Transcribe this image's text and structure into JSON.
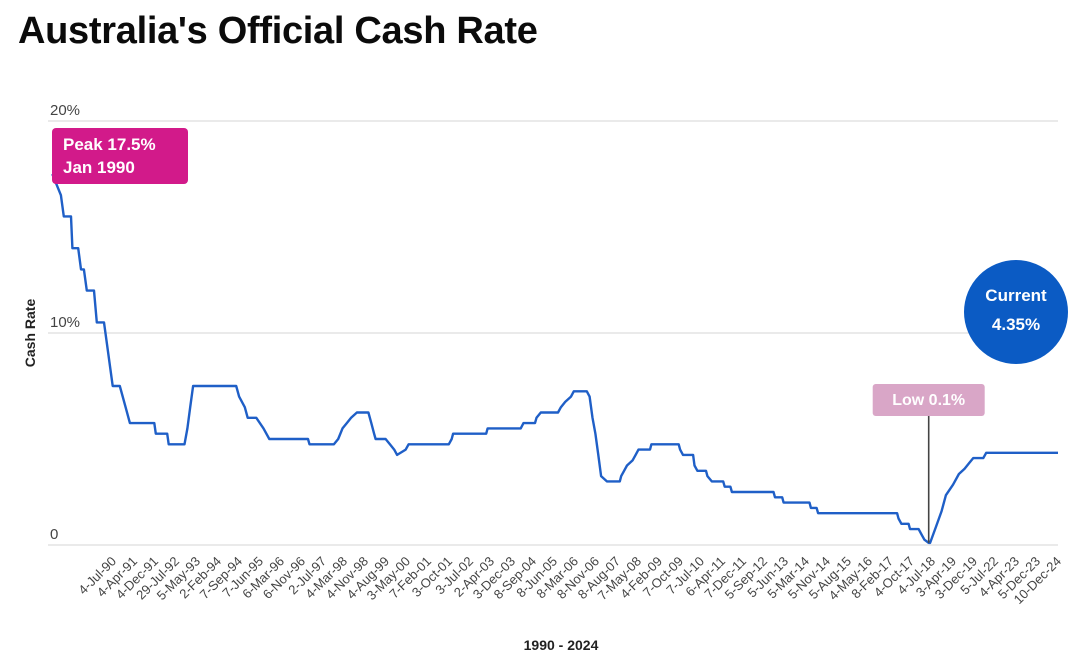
{
  "title": "Australia's Official Cash Rate",
  "chart_data": {
    "type": "line",
    "title": "Australia's Official Cash Rate",
    "xlabel": "1990 - 2024",
    "ylabel": "Cash Rate",
    "ylim": [
      0,
      20
    ],
    "xlim": [
      1989.85,
      2025.0
    ],
    "y_ticks": [
      "0",
      "10%",
      "20%"
    ],
    "y_tick_values": [
      0,
      10,
      20
    ],
    "grid": true,
    "legend": "none",
    "colors": {
      "line": "#1f5fc7",
      "peak": "#d21a8a",
      "low": "#d9a6c7",
      "current": "#0b5bc4",
      "grid": "#d6d6d6"
    },
    "x_tick_labels": [
      "4-Jul-90",
      "4-Apr-91",
      "4-Dec-91",
      "29-Jul-92",
      "5-May-93",
      "2-Feb-94",
      "7-Sep-94",
      "7-Jun-95",
      "6-Mar-96",
      "6-Nov-96",
      "2-Jul-97",
      "4-Mar-98",
      "4-Nov-98",
      "4-Aug-99",
      "3-May-00",
      "7-Feb-01",
      "3-Oct-01",
      "3-Jul-02",
      "2-Apr-03",
      "3-Dec-03",
      "8-Sep-04",
      "8-Jun-05",
      "8-Mar-06",
      "8-Nov-06",
      "8-Aug-07",
      "7-May-08",
      "4-Feb-09",
      "7-Oct-09",
      "7-Jul-10",
      "6-Apr-11",
      "7-Dec-11",
      "5-Sep-12",
      "5-Jun-13",
      "5-Mar-14",
      "5-Nov-14",
      "5-Aug-15",
      "4-May-16",
      "8-Feb-17",
      "4-Oct-17",
      "4-Jul-18",
      "3-Apr-19",
      "3-Dec-19",
      "5-Jul-22",
      "4-Apr-23",
      "5-Dec-23",
      "10-Dec-24"
    ],
    "series": [
      {
        "values": [
          [
            1990.0,
            17.5
          ],
          [
            1990.3,
            16.5
          ],
          [
            1990.4,
            15.5
          ],
          [
            1990.65,
            15.5
          ],
          [
            1990.7,
            14.0
          ],
          [
            1990.9,
            14.0
          ],
          [
            1991.0,
            13.0
          ],
          [
            1991.1,
            13.0
          ],
          [
            1991.2,
            12.0
          ],
          [
            1991.45,
            12.0
          ],
          [
            1991.55,
            10.5
          ],
          [
            1991.8,
            10.5
          ],
          [
            1991.9,
            9.5
          ],
          [
            1992.0,
            8.5
          ],
          [
            1992.1,
            7.5
          ],
          [
            1992.35,
            7.5
          ],
          [
            1992.55,
            6.5
          ],
          [
            1992.7,
            5.75
          ],
          [
            1993.55,
            5.75
          ],
          [
            1993.6,
            5.25
          ],
          [
            1994.0,
            5.25
          ],
          [
            1994.05,
            4.75
          ],
          [
            1994.6,
            4.75
          ],
          [
            1994.7,
            5.5
          ],
          [
            1994.8,
            6.5
          ],
          [
            1994.9,
            7.5
          ],
          [
            1996.4,
            7.5
          ],
          [
            1996.5,
            7.0
          ],
          [
            1996.7,
            6.5
          ],
          [
            1996.8,
            6.0
          ],
          [
            1997.1,
            6.0
          ],
          [
            1997.35,
            5.5
          ],
          [
            1997.55,
            5.0
          ],
          [
            1998.9,
            5.0
          ],
          [
            1998.95,
            4.75
          ],
          [
            1999.8,
            4.75
          ],
          [
            1999.95,
            5.0
          ],
          [
            2000.1,
            5.5
          ],
          [
            2000.25,
            5.75
          ],
          [
            2000.4,
            6.0
          ],
          [
            2000.6,
            6.25
          ],
          [
            2001.0,
            6.25
          ],
          [
            2001.1,
            5.75
          ],
          [
            2001.2,
            5.25
          ],
          [
            2001.25,
            5.0
          ],
          [
            2001.6,
            5.0
          ],
          [
            2001.75,
            4.75
          ],
          [
            2001.9,
            4.5
          ],
          [
            2002.0,
            4.25
          ],
          [
            2002.3,
            4.5
          ],
          [
            2002.4,
            4.75
          ],
          [
            2003.8,
            4.75
          ],
          [
            2003.9,
            5.0
          ],
          [
            2003.95,
            5.25
          ],
          [
            2005.1,
            5.25
          ],
          [
            2005.15,
            5.5
          ],
          [
            2006.3,
            5.5
          ],
          [
            2006.4,
            5.75
          ],
          [
            2006.8,
            5.75
          ],
          [
            2006.85,
            6.0
          ],
          [
            2007.0,
            6.25
          ],
          [
            2007.6,
            6.25
          ],
          [
            2007.7,
            6.5
          ],
          [
            2007.85,
            6.75
          ],
          [
            2008.05,
            7.0
          ],
          [
            2008.15,
            7.25
          ],
          [
            2008.6,
            7.25
          ],
          [
            2008.7,
            7.0
          ],
          [
            2008.8,
            6.0
          ],
          [
            2008.9,
            5.25
          ],
          [
            2009.0,
            4.25
          ],
          [
            2009.1,
            3.25
          ],
          [
            2009.3,
            3.0
          ],
          [
            2009.75,
            3.0
          ],
          [
            2009.8,
            3.25
          ],
          [
            2009.9,
            3.5
          ],
          [
            2010.0,
            3.75
          ],
          [
            2010.2,
            4.0
          ],
          [
            2010.3,
            4.25
          ],
          [
            2010.4,
            4.5
          ],
          [
            2010.8,
            4.5
          ],
          [
            2010.85,
            4.75
          ],
          [
            2011.8,
            4.75
          ],
          [
            2011.85,
            4.5
          ],
          [
            2011.95,
            4.25
          ],
          [
            2012.3,
            4.25
          ],
          [
            2012.35,
            3.75
          ],
          [
            2012.45,
            3.5
          ],
          [
            2012.75,
            3.5
          ],
          [
            2012.8,
            3.25
          ],
          [
            2012.95,
            3.0
          ],
          [
            2013.35,
            3.0
          ],
          [
            2013.4,
            2.75
          ],
          [
            2013.6,
            2.75
          ],
          [
            2013.65,
            2.5
          ],
          [
            2015.1,
            2.5
          ],
          [
            2015.15,
            2.25
          ],
          [
            2015.4,
            2.25
          ],
          [
            2015.45,
            2.0
          ],
          [
            2016.35,
            2.0
          ],
          [
            2016.4,
            1.75
          ],
          [
            2016.6,
            1.75
          ],
          [
            2016.65,
            1.5
          ],
          [
            2019.4,
            1.5
          ],
          [
            2019.45,
            1.25
          ],
          [
            2019.55,
            1.0
          ],
          [
            2019.8,
            1.0
          ],
          [
            2019.85,
            0.75
          ],
          [
            2020.15,
            0.75
          ],
          [
            2020.25,
            0.5
          ],
          [
            2020.35,
            0.25
          ],
          [
            2020.5,
            0.1
          ],
          [
            2020.55,
            0.1
          ],
          [
            2020.75,
            0.85
          ],
          [
            2020.95,
            1.6
          ],
          [
            2021.1,
            2.35
          ],
          [
            2021.35,
            2.85
          ],
          [
            2021.55,
            3.35
          ],
          [
            2021.75,
            3.6
          ],
          [
            2021.9,
            3.85
          ],
          [
            2022.05,
            4.1
          ],
          [
            2022.4,
            4.1
          ],
          [
            2022.5,
            4.35
          ],
          [
            2025.0,
            4.35
          ]
        ]
      }
    ],
    "annotations": {
      "peak": {
        "line1": "Peak 17.5%",
        "line2": "Jan 1990"
      },
      "low": {
        "text": "Low 0.1%"
      },
      "current": {
        "line1": "Current",
        "line2": "4.35%"
      }
    }
  }
}
